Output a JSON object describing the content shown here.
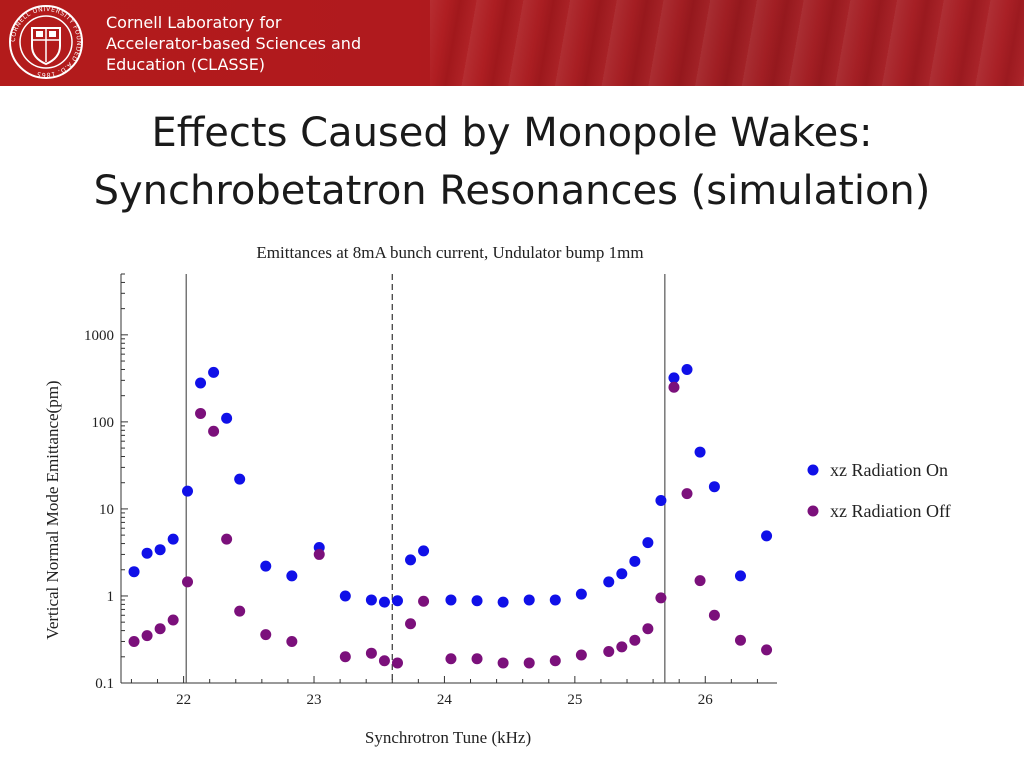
{
  "header": {
    "organization_lines": [
      "Cornell Laboratory for",
      "Accelerator-based Sciences and",
      "Education (CLASSE)"
    ],
    "seal_text": "CORNELL UNIVERSITY FOUNDED A.D. 1865",
    "colors": {
      "banner": "#b31b1b",
      "text": "#ffffff"
    }
  },
  "slide": {
    "title_lines": [
      "Effects Caused by Monopole Wakes:",
      "Synchrobetatron Resonances (simulation)"
    ]
  },
  "chart_data": {
    "type": "scatter",
    "title": "Emittances at 8mA bunch current, Undulator bump 1mm",
    "xlabel": "Synchrotron Tune (kHz)",
    "ylabel": "Vertical Normal Mode Emittance(pm)",
    "xlim": [
      21.52,
      26.55
    ],
    "ylim": [
      0.1,
      5000
    ],
    "yscale": "log",
    "xticks": [
      22,
      23,
      24,
      25,
      26
    ],
    "xtick_labels": [
      "22",
      "23",
      "24",
      "25",
      "26"
    ],
    "yticks": [
      0.1,
      1,
      10,
      100,
      1000
    ],
    "ytick_labels": [
      "0.1",
      "1",
      "10",
      "100",
      "1000"
    ],
    "grid": false,
    "legend_position": "right",
    "vertical_lines": [
      {
        "x": 22.02,
        "style": "solid"
      },
      {
        "x": 23.6,
        "style": "dashed"
      },
      {
        "x": 25.69,
        "style": "solid"
      }
    ],
    "series": [
      {
        "name": "xz Radiation On",
        "color": "#1010e8",
        "x": [
          21.62,
          21.72,
          21.82,
          21.92,
          22.03,
          22.13,
          22.23,
          22.33,
          22.43,
          22.63,
          22.83,
          23.04,
          23.24,
          23.44,
          23.54,
          23.64,
          23.74,
          23.84,
          24.05,
          24.25,
          24.45,
          24.65,
          24.85,
          25.05,
          25.26,
          25.36,
          25.46,
          25.56,
          25.66,
          25.76,
          25.86,
          25.96,
          26.07,
          26.27,
          26.47
        ],
        "y": [
          1.9,
          3.1,
          3.4,
          4.5,
          16,
          280,
          370,
          110,
          22,
          2.2,
          1.7,
          3.6,
          1.0,
          0.9,
          0.85,
          0.88,
          2.6,
          3.3,
          0.9,
          0.88,
          0.85,
          0.9,
          0.9,
          1.05,
          1.45,
          1.8,
          2.5,
          4.1,
          12.5,
          320,
          400,
          45,
          18,
          1.7,
          4.9
        ]
      },
      {
        "name": "xz Radiation Off",
        "color": "#7b107b",
        "x": [
          21.62,
          21.72,
          21.82,
          21.92,
          22.03,
          22.13,
          22.23,
          22.33,
          22.43,
          22.63,
          22.83,
          23.04,
          23.24,
          23.44,
          23.54,
          23.64,
          23.74,
          23.84,
          24.05,
          24.25,
          24.45,
          24.65,
          24.85,
          25.05,
          25.26,
          25.36,
          25.46,
          25.56,
          25.66,
          25.76,
          25.86,
          25.96,
          26.07,
          26.27,
          26.47
        ],
        "y": [
          0.3,
          0.35,
          0.42,
          0.53,
          1.45,
          125,
          78,
          4.5,
          0.67,
          0.36,
          0.3,
          3.0,
          0.2,
          0.22,
          0.18,
          0.17,
          0.48,
          0.87,
          0.19,
          0.19,
          0.17,
          0.17,
          0.18,
          0.21,
          0.23,
          0.26,
          0.31,
          0.42,
          0.95,
          250,
          15,
          1.5,
          0.6,
          0.31,
          0.24
        ]
      }
    ]
  }
}
